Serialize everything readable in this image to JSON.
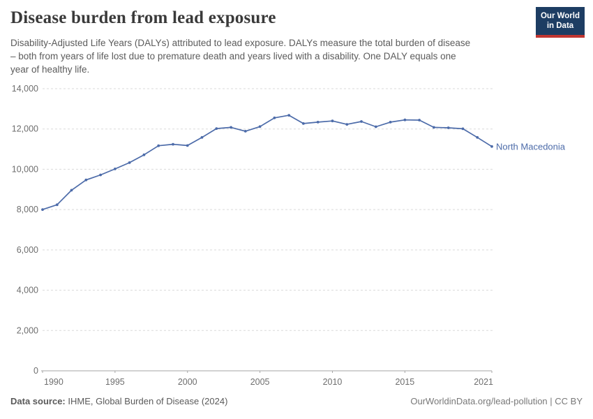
{
  "header": {
    "title": "Disease burden from lead exposure",
    "subtitle_lines": [
      "Disability-Adjusted Life Years (DALYs) attributed to lead exposure. DALYs measure the total burden of disease",
      "– both from years of life lost due to premature death and years lived with a disability. One DALY equals one",
      "year of healthy life."
    ],
    "logo": {
      "line1": "Our World",
      "line2": "in Data",
      "bg_color": "#1d3d63",
      "stripe_color": "#c13631"
    }
  },
  "chart_data": {
    "type": "line",
    "title": "Disease burden from lead exposure",
    "xlabel": "",
    "ylabel": "",
    "xlim": [
      1990,
      2021
    ],
    "ylim": [
      0,
      14000
    ],
    "grid": true,
    "legend_position": "right-end-of-line",
    "x": [
      1990,
      1991,
      1992,
      1993,
      1994,
      1995,
      1996,
      1997,
      1998,
      1999,
      2000,
      2001,
      2002,
      2003,
      2004,
      2005,
      2006,
      2007,
      2008,
      2009,
      2010,
      2011,
      2012,
      2013,
      2014,
      2015,
      2016,
      2017,
      2018,
      2019,
      2020,
      2021
    ],
    "series": [
      {
        "name": "North Macedonia",
        "color": "#4c6ba9",
        "values": [
          8000,
          8240,
          8960,
          9470,
          9720,
          10020,
          10330,
          10720,
          11170,
          11240,
          11180,
          11580,
          12020,
          12080,
          11890,
          12120,
          12550,
          12680,
          12270,
          12340,
          12400,
          12230,
          12370,
          12110,
          12340,
          12450,
          12440,
          12080,
          12060,
          12010,
          11580,
          11130
        ]
      }
    ],
    "y_ticks": [
      0,
      2000,
      4000,
      6000,
      8000,
      10000,
      12000,
      14000
    ],
    "y_tick_labels": [
      "0",
      "2,000",
      "4,000",
      "6,000",
      "8,000",
      "10,000",
      "12,000",
      "14,000"
    ],
    "x_ticks": [
      1990,
      1995,
      2000,
      2005,
      2010,
      2015,
      2021
    ],
    "x_tick_labels": [
      "1990",
      "1995",
      "2000",
      "2005",
      "2010",
      "2015",
      "2021"
    ],
    "colors": {
      "grid": "#d9d9d9",
      "axis": "#a5a5a5",
      "tick_text": "#6e6e6e"
    }
  },
  "footer": {
    "source_label": "Data source:",
    "source_value": " IHME, Global Burden of Disease (2024)",
    "credit": "OurWorldinData.org/lead-pollution | CC BY"
  }
}
